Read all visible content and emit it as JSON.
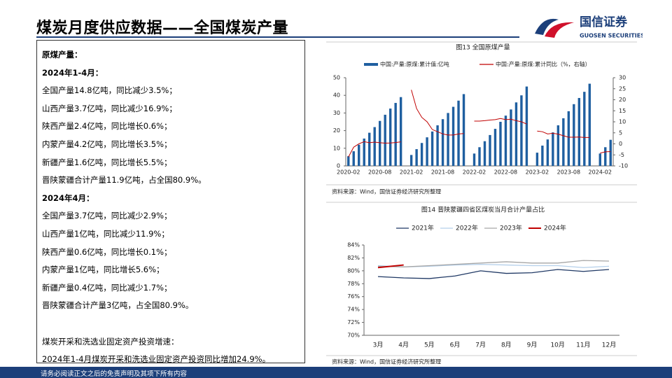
{
  "header": {
    "title": "煤炭月度供应数据——全国煤炭产量",
    "logo_cn": "国信证券",
    "logo_en": "GUOSEN SECURITIES"
  },
  "left_panel": {
    "heading": "原煤产量：",
    "sections": [
      {
        "title": "2024年1-4月：",
        "lines": [
          "全国产量14.8亿吨，同比减少3.5%；",
          "山西产量3.7亿吨，同比减少16.9%；",
          "陕西产量2.4亿吨，同比增长0.6%；",
          "内蒙产量4.2亿吨，同比增长3.5%；",
          "新疆产量1.6亿吨，同比增长5.5%；",
          "晋陕蒙疆合计产量11.9亿吨，占全国80.9%。"
        ]
      },
      {
        "title": "2024年4月：",
        "lines": [
          "全国产量3.7亿吨，同比减少2.9%；",
          "山西产量1亿吨，同比减少11.9%；",
          "陕西产量0.6亿吨，同比增长0.1%；",
          "内蒙产量1亿吨，同比增长5.6%；",
          "新疆产量0.4亿吨，同比减少1.7%；",
          "晋陕蒙疆合计产量3亿吨，占全国80.9%。"
        ]
      },
      {
        "title": "煤炭开采和洗选业固定资产投资增速：",
        "lines": [
          "2024年1-4月煤炭开采和洗选业固定资产投资同比增加24.9%。"
        ]
      }
    ]
  },
  "footer": "请务必阅读正文之后的免责声明及其项下所有内容",
  "chart_data": [
    {
      "type": "bar",
      "title": "图13 全国原煤产量",
      "source": "资料来源：Wind，国信证券经济研究所整理",
      "categories": [
        "2020-02",
        null,
        null,
        null,
        null,
        null,
        "2020-08",
        null,
        null,
        null,
        null,
        null,
        "2021-02",
        null,
        null,
        null,
        null,
        null,
        "2021-08",
        null,
        null,
        null,
        null,
        null,
        "2022-02",
        null,
        null,
        null,
        null,
        null,
        "2022-08",
        null,
        null,
        null,
        null,
        null,
        "2023-02",
        null,
        null,
        null,
        null,
        null,
        "2023-08",
        null,
        null,
        null,
        null,
        null,
        "2024-02",
        null,
        null
      ],
      "series": [
        {
          "name": "中国:产量:原煤:累计值:亿吨",
          "color": "#1f5fa0",
          "values": [
            5.5,
            8.3,
            12,
            15.5,
            18.8,
            22,
            25.5,
            29,
            32.5,
            35.7,
            39,
            null,
            6.2,
            9.5,
            13,
            16.2,
            19.5,
            23,
            26.5,
            30,
            33.5,
            37,
            40.7,
            null,
            7,
            10.6,
            14,
            17.5,
            21,
            25,
            28.5,
            32,
            36,
            40,
            45,
            null,
            7.5,
            11.5,
            15,
            19,
            23,
            27,
            31,
            35,
            38.5,
            42,
            46.6,
            null,
            7,
            10.6,
            14.8
          ]
        },
        {
          "name": "中国:产量:原煤:累计同比（%，右轴）",
          "color": "#c00000",
          "type": "line",
          "axis": "y2",
          "values": [
            -6,
            -1.5,
            0,
            1,
            0.5,
            0.8,
            0.5,
            0.3,
            0.4,
            0.6,
            0.9,
            null,
            24.5,
            16,
            12,
            10,
            6.5,
            5.5,
            4.5,
            4,
            4,
            4.5,
            4.7,
            null,
            10.3,
            10.3,
            10.5,
            10.8,
            11,
            11.5,
            11,
            11.2,
            10.5,
            10,
            9,
            null,
            5.8,
            5.5,
            4.5,
            4.8,
            4.4,
            3.7,
            3,
            3,
            3.1,
            2.9,
            2.9,
            null,
            -4.2,
            -3.6,
            -3.5
          ]
        }
      ],
      "ylim": [
        0,
        50
      ],
      "yticks": [
        0,
        10,
        20,
        30,
        40,
        50
      ],
      "y2lim": [
        -10,
        30
      ],
      "y2ticks": [
        -10,
        -5,
        0,
        5,
        10,
        15,
        20,
        25,
        30
      ]
    },
    {
      "type": "line",
      "title": "图14 晋陕蒙疆四省区煤炭当月合计产量占比",
      "source": "资料来源：Wind，国信证券经济研究所整理",
      "categories": [
        "3月",
        "4月",
        "5月",
        "6月",
        "7月",
        "8月",
        "9月",
        "10月",
        "11月",
        "12月"
      ],
      "series": [
        {
          "name": "2021年",
          "color": "#1f3864",
          "values": [
            79.1,
            78.9,
            78.8,
            79.2,
            80.0,
            79.6,
            79.7,
            80.2,
            79.9,
            80.2
          ]
        },
        {
          "name": "2022年",
          "color": "#b4cfea",
          "values": [
            80.8,
            80.6,
            80.7,
            80.9,
            81.0,
            80.9,
            80.8,
            80.8,
            80.5,
            80.7
          ]
        },
        {
          "name": "2023年",
          "color": "#a6a6a6",
          "values": [
            80.7,
            80.6,
            80.8,
            81.0,
            81.2,
            81.4,
            81.2,
            81.2,
            81.6,
            81.5
          ]
        },
        {
          "name": "2024年",
          "color": "#c00000",
          "values": [
            80.5,
            80.9,
            null,
            null,
            null,
            null,
            null,
            null,
            null,
            null
          ]
        }
      ],
      "ylim": [
        70,
        84
      ],
      "yticks": [
        {
          "value": 70,
          "label": "70%"
        },
        {
          "value": 72,
          "label": "72%"
        },
        {
          "value": 74,
          "label": "74%"
        },
        {
          "value": 76,
          "label": "76%"
        },
        {
          "value": 78,
          "label": "78%"
        },
        {
          "value": 80,
          "label": "80%"
        },
        {
          "value": 82,
          "label": "82%"
        },
        {
          "value": 84,
          "label": "84%"
        }
      ]
    }
  ]
}
